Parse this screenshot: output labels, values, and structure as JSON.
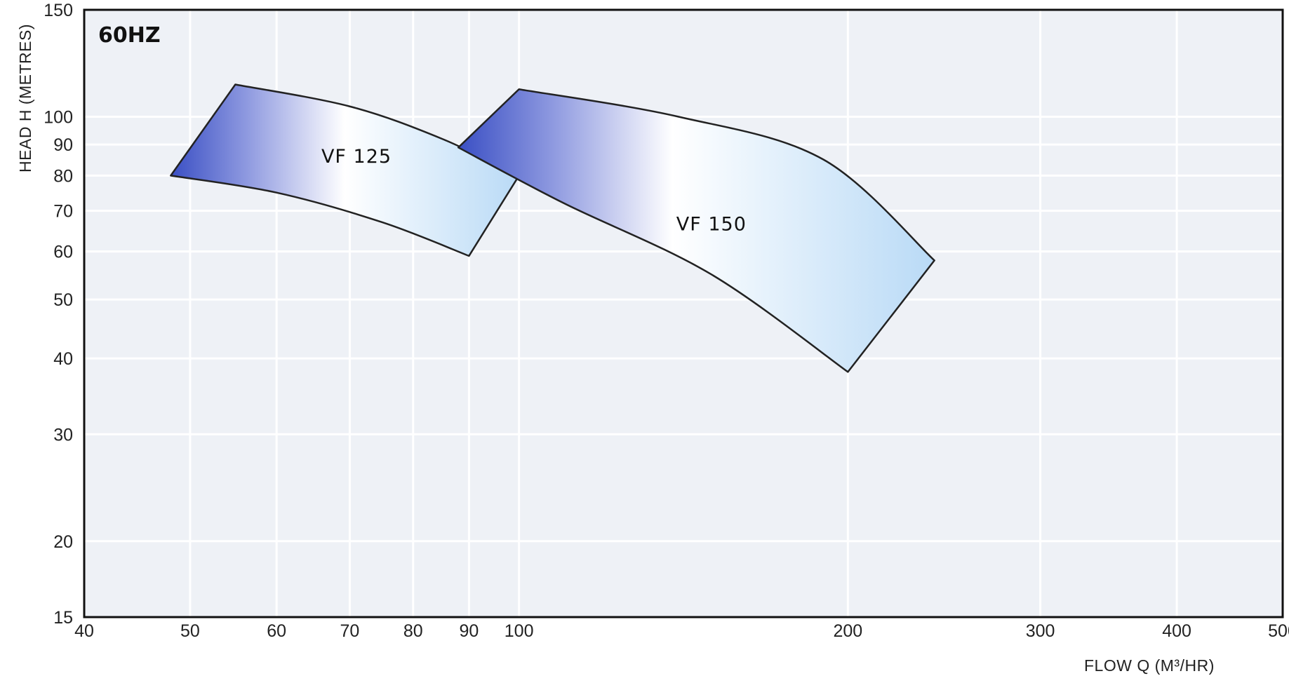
{
  "chart_data": {
    "type": "area",
    "title": "60HZ",
    "xlabel": "FLOW Q (M³/HR)",
    "ylabel": "HEAD H (METRES)",
    "x_scale": "log",
    "y_scale": "log",
    "xlim": [
      40,
      500
    ],
    "ylim": [
      15,
      150
    ],
    "x_ticks": [
      40,
      50,
      60,
      70,
      80,
      90,
      100,
      200,
      300,
      400,
      500
    ],
    "y_ticks": [
      15,
      20,
      30,
      40,
      50,
      60,
      70,
      80,
      90,
      100,
      150
    ],
    "grid": true,
    "series": [
      {
        "name": "VF 125",
        "label_at": [
          71,
          84
        ],
        "top_curve": [
          [
            55,
            113
          ],
          [
            70,
            104
          ],
          [
            85,
            92
          ],
          [
            100,
            80
          ]
        ],
        "bottom_curve": [
          [
            48,
            80
          ],
          [
            60,
            75
          ],
          [
            75,
            67
          ],
          [
            90,
            59
          ]
        ]
      },
      {
        "name": "VF 150",
        "label_at": [
          150,
          65
        ],
        "top_curve": [
          [
            100,
            111
          ],
          [
            140,
            100
          ],
          [
            190,
            85
          ],
          [
            240,
            58
          ]
        ],
        "bottom_curve": [
          [
            88,
            89
          ],
          [
            110,
            72
          ],
          [
            150,
            55
          ],
          [
            200,
            38
          ]
        ]
      }
    ],
    "colors": {
      "band_dark": "#3a4fc4",
      "band_mid": "#ffffff",
      "band_light": "#bcdcf6",
      "plot_bg": "#eef1f6",
      "grid": "#ffffff"
    }
  }
}
